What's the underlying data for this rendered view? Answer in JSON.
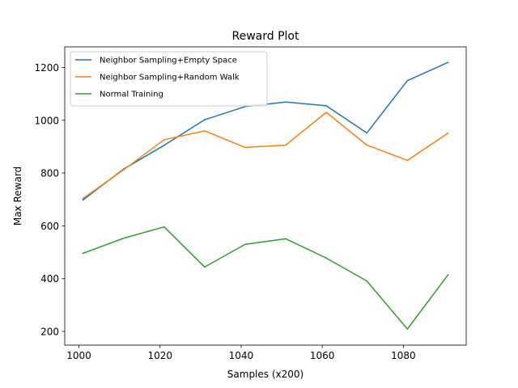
{
  "chart_data": {
    "type": "line",
    "title": "Reward Plot",
    "xlabel": "Samples (x200)",
    "ylabel": "Max Reward",
    "xlim": [
      996.5,
      1095.5
    ],
    "ylim": [
      148,
      1278
    ],
    "xticks": [
      1000,
      1020,
      1040,
      1060,
      1080
    ],
    "yticks": [
      200,
      400,
      600,
      800,
      1000,
      1200
    ],
    "x": [
      1001,
      1011,
      1021,
      1031,
      1041,
      1051,
      1061,
      1071,
      1081,
      1091
    ],
    "grid": false,
    "legend_position": "top-left",
    "series": [
      {
        "name": "Neighbor Sampling+Empty Space",
        "color": "#1f77b4",
        "values": [
          698,
          815,
          905,
          1002,
          1052,
          1069,
          1055,
          952,
          1150,
          1219
        ]
      },
      {
        "name": "Neighbor Sampling+Random Walk",
        "color": "#ff7f0e",
        "values": [
          704,
          812,
          926,
          960,
          897,
          906,
          1030,
          906,
          848,
          951
        ]
      },
      {
        "name": "Normal Training",
        "color": "#2ca02c",
        "values": [
          496,
          553,
          596,
          444,
          530,
          551,
          478,
          391,
          209,
          414
        ]
      }
    ]
  }
}
